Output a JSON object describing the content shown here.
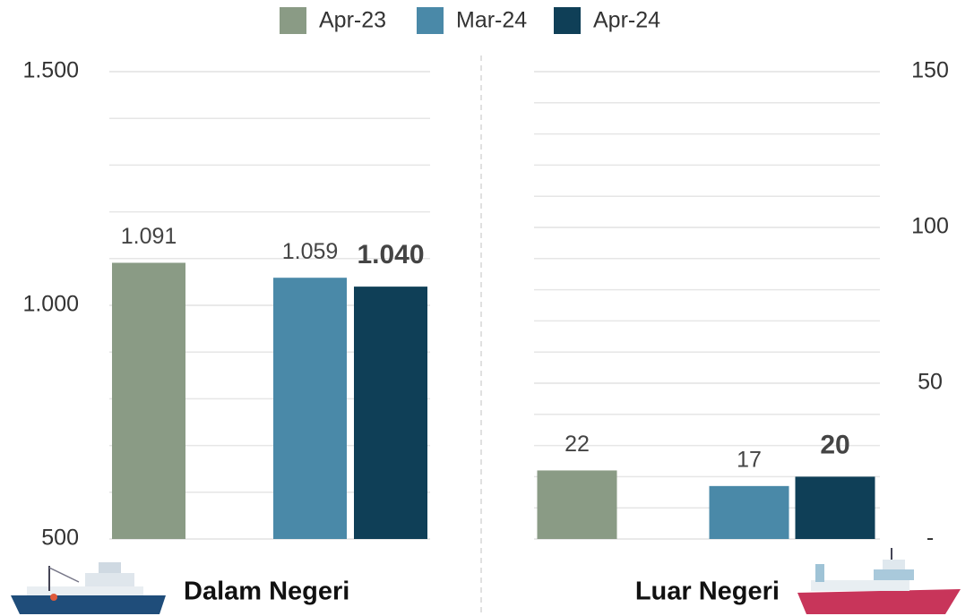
{
  "chart_data": [
    {
      "type": "bar",
      "title": "Dalam Negeri",
      "series": [
        {
          "name": "Apr-23",
          "color": "#8a9b85",
          "values": [
            1091
          ],
          "value_labels": [
            "1.091"
          ]
        },
        {
          "name": "Mar-24",
          "color": "#4a89a8",
          "values": [
            1059
          ],
          "value_labels": [
            "1.059"
          ]
        },
        {
          "name": "Apr-24",
          "color": "#0f3f57",
          "values": [
            1040
          ],
          "value_labels": [
            "1.040"
          ]
        }
      ],
      "ylim": [
        500,
        1500
      ],
      "yticks": [
        500,
        {
          "value": 1000,
          "label": "1.000"
        },
        {
          "value": 1500,
          "label": "1.500"
        }
      ],
      "grid": true
    },
    {
      "type": "bar",
      "title": "Luar Negeri",
      "series": [
        {
          "color": "#8a9b85",
          "values": [
            22
          ]
        },
        {
          "color": "#4a89a8",
          "values": [
            17
          ]
        },
        {
          "color": "#0f3f57",
          "values": [
            20
          ]
        }
      ],
      "ylim": [
        0,
        150
      ],
      "yticks": [
        {
          "value": 0,
          "label": "-"
        },
        50,
        100,
        150
      ],
      "grid": true
    }
  ]
}
